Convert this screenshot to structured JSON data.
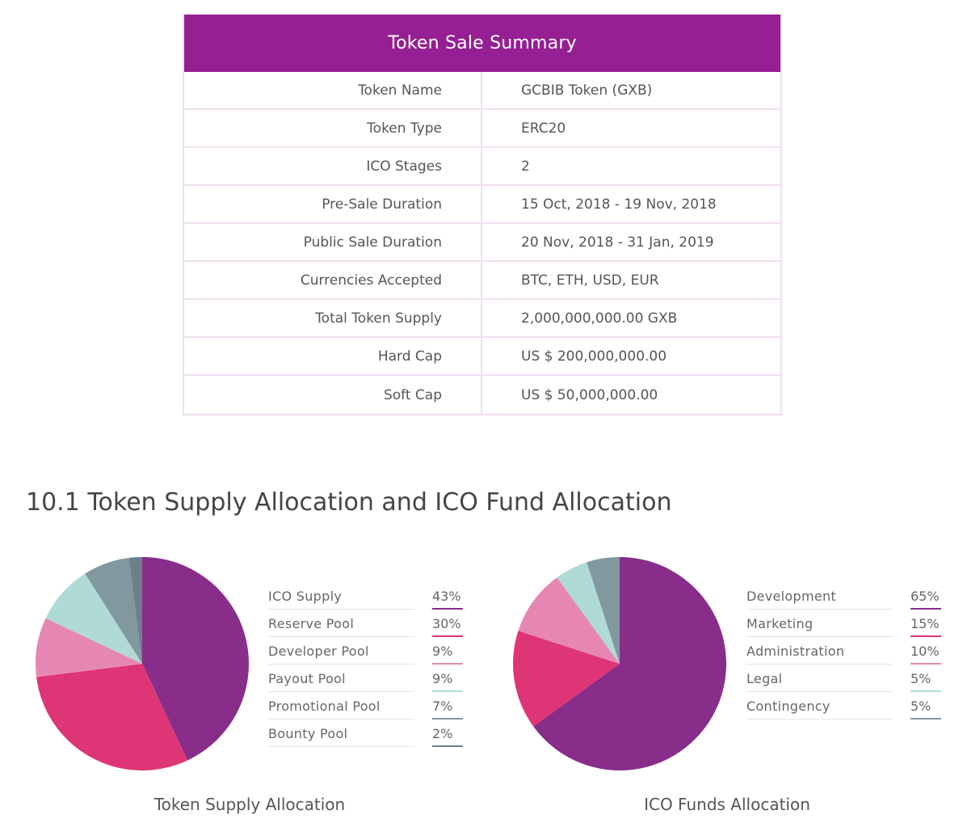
{
  "summary": {
    "title": "Token Sale Summary",
    "rows": [
      {
        "key": "Token Name",
        "value": "GCBIB Token (GXB)"
      },
      {
        "key": "Token Type",
        "value": "ERC20"
      },
      {
        "key": "ICO Stages",
        "value": "2"
      },
      {
        "key": "Pre-Sale Duration",
        "value": "15 Oct, 2018 - 19 Nov, 2018"
      },
      {
        "key": "Public Sale Duration",
        "value": "20 Nov, 2018 - 31 Jan, 2019"
      },
      {
        "key": "Currencies Accepted",
        "value": "BTC, ETH, USD, EUR"
      },
      {
        "key": "Total Token Supply",
        "value": "2,000,000,000.00 GXB"
      },
      {
        "key": "Hard Cap",
        "value": "US $ 200,000,000.00"
      },
      {
        "key": "Soft Cap",
        "value": "US $ 50,000,000.00"
      }
    ]
  },
  "section_title": "10.1 Token Supply Allocation and ICO Fund Allocation",
  "chart_data": [
    {
      "type": "pie",
      "title": "Token Supply Allocation",
      "categories": [
        "ICO Supply",
        "Reserve Pool",
        "Developer Pool",
        "Payout Pool",
        "Promotional Pool",
        "Bounty Pool"
      ],
      "values": [
        43,
        30,
        9,
        9,
        7,
        2
      ],
      "labels": [
        "43%",
        "30%",
        "9%",
        "9%",
        "7%",
        "2%"
      ],
      "colors": [
        "#882d8a",
        "#de3576",
        "#e687b3",
        "#b0dad6",
        "#82989f",
        "#6d7f8b"
      ],
      "legend": "right"
    },
    {
      "type": "pie",
      "title": "ICO Funds Allocation",
      "categories": [
        "Development",
        "Marketing",
        "Administration",
        "Legal",
        "Contingency"
      ],
      "values": [
        65,
        15,
        10,
        5,
        5
      ],
      "labels": [
        "65%",
        "15%",
        "10%",
        "5%",
        "5%"
      ],
      "colors": [
        "#882d8a",
        "#de3576",
        "#e687b3",
        "#b0dad6",
        "#82989f"
      ],
      "legend": "right"
    }
  ]
}
